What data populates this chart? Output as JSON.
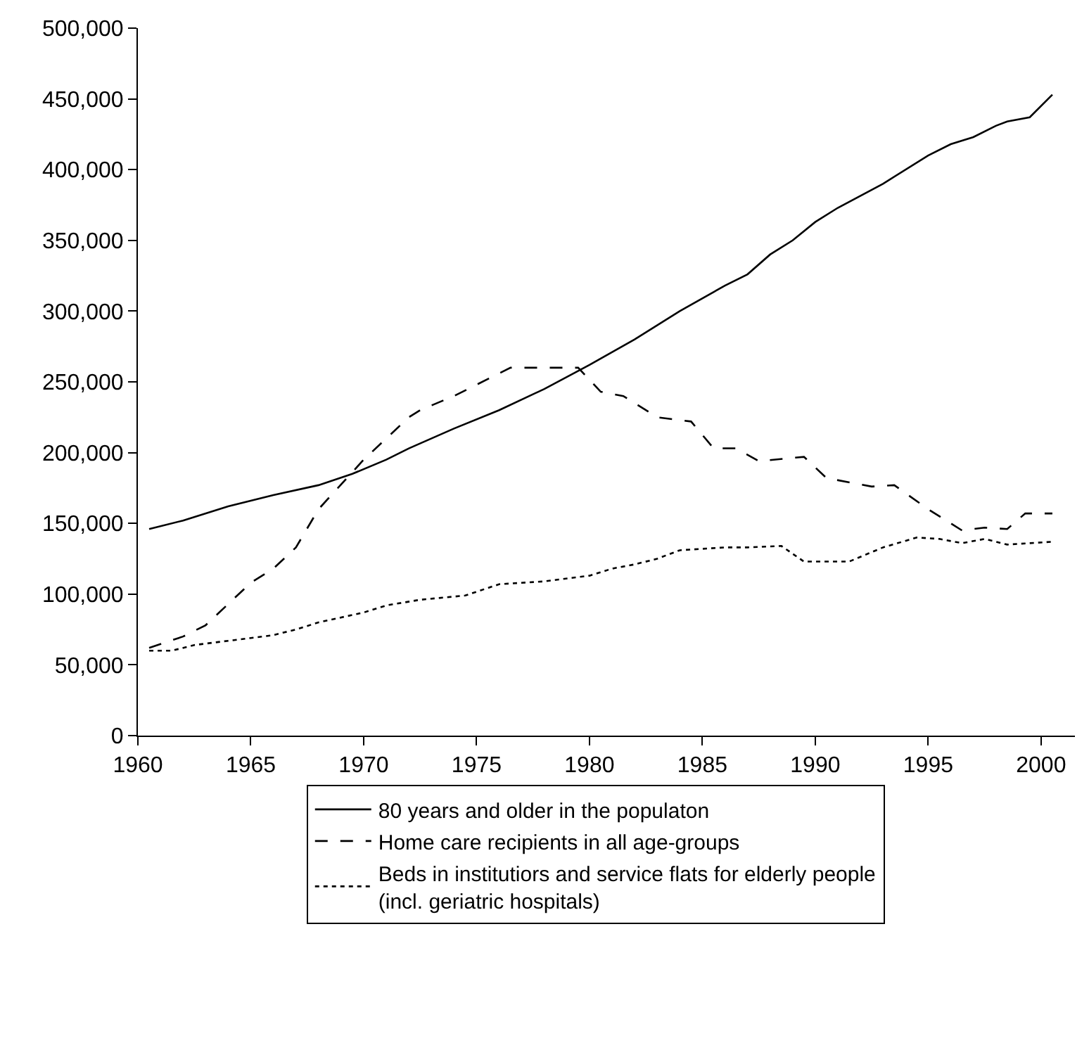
{
  "chart_data": {
    "type": "line",
    "xlim": [
      1960,
      2001.5
    ],
    "xticks": [
      1960,
      1965,
      1970,
      1975,
      1980,
      1985,
      1990,
      1995,
      2000
    ],
    "ylim": [
      0,
      500000
    ],
    "yticks": [
      {
        "value": 0,
        "label": "0"
      },
      {
        "value": 50000,
        "label": "50,000"
      },
      {
        "value": 100000,
        "label": "100,000"
      },
      {
        "value": 150000,
        "label": "150,000"
      },
      {
        "value": 200000,
        "label": "200,000"
      },
      {
        "value": 250000,
        "label": "250,000"
      },
      {
        "value": 300000,
        "label": "300,000"
      },
      {
        "value": 350000,
        "label": "350,000"
      },
      {
        "value": 400000,
        "label": "400,000"
      },
      {
        "value": 450000,
        "label": "450,000"
      },
      {
        "value": 500000,
        "label": "500,000"
      }
    ],
    "legend": "bottom",
    "marker": "none",
    "series": [
      {
        "name": "80 years and older in the populaton",
        "color": "#000000",
        "line_style": "solid",
        "x": [
          1960.5,
          1962,
          1964,
          1966,
          1968,
          1969.5,
          1971,
          1972,
          1974,
          1976,
          1978,
          1980,
          1982,
          1984,
          1986,
          1987,
          1988,
          1989,
          1990,
          1991,
          1993,
          1995,
          1996,
          1997,
          1998,
          1998.5,
          1999.5,
          2000.5
        ],
        "values": [
          146000,
          152000,
          162000,
          170000,
          177000,
          185000,
          195000,
          203000,
          217000,
          230000,
          245000,
          262000,
          280000,
          300000,
          318000,
          326000,
          340000,
          350000,
          363000,
          373000,
          390000,
          410000,
          418000,
          423000,
          431000,
          434000,
          437000,
          453000
        ]
      },
      {
        "name": "Home care recipients in all age-groups",
        "color": "#000000",
        "line_style": "dashed",
        "x": [
          1960.5,
          1962,
          1963,
          1965,
          1966,
          1967,
          1968,
          1970,
          1972,
          1972.5,
          1974,
          1976.5,
          1979.5,
          1980.5,
          1981.5,
          1983,
          1984.5,
          1985.5,
          1986.5,
          1987.5,
          1989.5,
          1990.5,
          1992.5,
          1993.5,
          1995,
          1996.5,
          1997.5,
          1998.5,
          1999.3,
          2000.5
        ],
        "values": [
          62000,
          70000,
          78000,
          108000,
          118000,
          133000,
          160000,
          195000,
          225000,
          230000,
          240000,
          260000,
          260000,
          243000,
          240000,
          225000,
          222000,
          203000,
          203000,
          194000,
          197000,
          182000,
          176000,
          177000,
          160000,
          145000,
          147000,
          146000,
          157000,
          157000
        ]
      },
      {
        "name": "Beds in institutiors and service flats for elderly people\n(incl. geriatric hospitals)",
        "color": "#000000",
        "line_style": "dotted",
        "x": [
          1960.5,
          1961.5,
          1962.5,
          1964,
          1966,
          1967,
          1968,
          1970,
          1971,
          1972.5,
          1974.5,
          1976,
          1978,
          1980,
          1981,
          1982,
          1983,
          1984,
          1986,
          1987,
          1988.5,
          1989.5,
          1991.5,
          1993,
          1994.5,
          1995.5,
          1996.5,
          1997.5,
          1998.5,
          2000.5
        ],
        "values": [
          60000,
          60000,
          64000,
          67000,
          71000,
          75000,
          80000,
          87000,
          92000,
          96000,
          99000,
          107000,
          109000,
          113000,
          118000,
          121000,
          125000,
          131000,
          133000,
          133000,
          134000,
          123000,
          123000,
          133000,
          140000,
          139000,
          136000,
          139000,
          135000,
          137000
        ]
      }
    ]
  }
}
